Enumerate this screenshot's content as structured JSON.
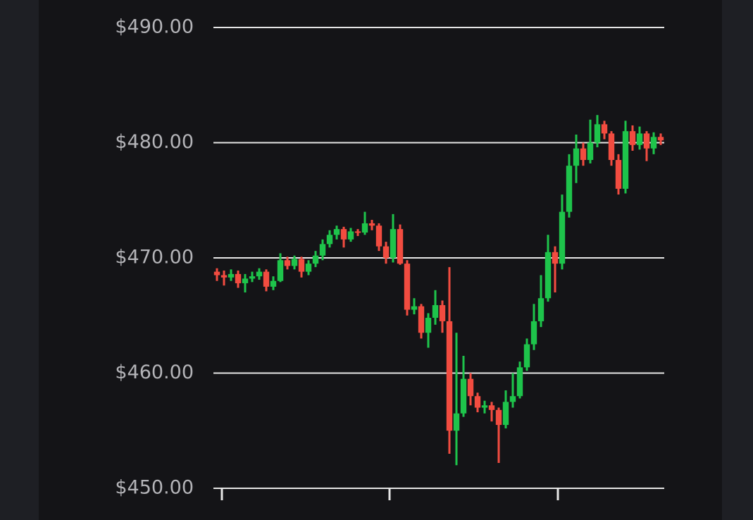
{
  "chart_data": {
    "type": "candlestick",
    "open": [
      468.8,
      468.5,
      468.3,
      468.6,
      467.8,
      468.2,
      468.4,
      468.8,
      467.5,
      468.0,
      469.8,
      469.3,
      469.9,
      468.8,
      469.5,
      470.2,
      471.2,
      472.0,
      472.5,
      471.6,
      472.3,
      472.2,
      473.0,
      472.8,
      471.0,
      470.0,
      472.5,
      469.5,
      465.5,
      465.8,
      463.5,
      464.8,
      465.9,
      464.5,
      455.0,
      456.5,
      459.5,
      458.0,
      457.0,
      457.2,
      456.8,
      455.5,
      457.5,
      458.0,
      460.5,
      462.5,
      464.5,
      466.5,
      470.5,
      469.5,
      474.0,
      478.0,
      479.5,
      478.5,
      480.0,
      481.6,
      480.8,
      478.5,
      476.0,
      481.0,
      479.8,
      480.8,
      479.5,
      480.5
    ],
    "high": [
      469.1,
      468.9,
      469.0,
      468.9,
      468.6,
      468.8,
      469.1,
      469.0,
      468.4,
      470.4,
      470.1,
      470.2,
      470.1,
      469.8,
      470.6,
      471.6,
      472.4,
      472.8,
      472.7,
      472.6,
      472.5,
      474.0,
      473.3,
      473.0,
      471.4,
      473.8,
      472.9,
      469.8,
      466.5,
      466.0,
      465.2,
      467.2,
      466.3,
      469.2,
      463.5,
      461.5,
      460.0,
      458.3,
      457.6,
      457.5,
      457.0,
      458.5,
      460.0,
      461.0,
      463.0,
      466.0,
      468.5,
      472.0,
      471.0,
      475.5,
      479.0,
      480.7,
      480.0,
      482.0,
      482.4,
      481.9,
      481.0,
      479.0,
      481.9,
      481.5,
      481.4,
      481.0,
      480.9,
      480.8
    ],
    "low": [
      468.0,
      467.6,
      468.0,
      467.4,
      467.0,
      467.9,
      468.1,
      467.1,
      467.2,
      467.9,
      469.0,
      469.0,
      468.3,
      468.5,
      469.2,
      469.8,
      470.9,
      471.6,
      470.9,
      471.4,
      471.9,
      472.0,
      472.4,
      470.6,
      469.5,
      469.6,
      469.4,
      465.0,
      465.1,
      463.0,
      462.2,
      464.2,
      463.5,
      453.0,
      452.0,
      456.2,
      457.2,
      456.6,
      456.5,
      455.8,
      452.2,
      455.2,
      457.0,
      457.8,
      460.2,
      462.0,
      464.0,
      466.2,
      467.0,
      469.0,
      473.5,
      476.5,
      478.0,
      478.2,
      479.6,
      480.3,
      478.0,
      475.5,
      475.6,
      479.3,
      479.4,
      478.4,
      479.0,
      479.8
    ],
    "close": [
      468.5,
      468.3,
      468.6,
      467.8,
      468.2,
      468.4,
      468.8,
      467.5,
      468.0,
      469.8,
      469.3,
      469.9,
      468.8,
      469.5,
      470.2,
      471.2,
      472.0,
      472.5,
      471.6,
      472.3,
      472.2,
      473.0,
      472.8,
      471.0,
      470.0,
      472.5,
      469.5,
      465.5,
      465.8,
      463.5,
      464.8,
      465.9,
      464.5,
      455.0,
      456.5,
      459.5,
      458.0,
      457.0,
      457.2,
      456.8,
      455.5,
      457.5,
      458.0,
      460.5,
      462.5,
      464.5,
      466.5,
      470.5,
      469.5,
      474.0,
      478.0,
      479.5,
      478.5,
      480.0,
      481.6,
      480.8,
      478.5,
      476.0,
      481.0,
      479.8,
      480.8,
      479.5,
      480.5,
      480.2
    ],
    "up_color": "#1ec44b",
    "down_color": "#f24c40",
    "ylim": [
      450,
      490
    ],
    "yticks": [
      {
        "value": 450,
        "label": "$450.00"
      },
      {
        "value": 460,
        "label": "$460.00"
      },
      {
        "value": 470,
        "label": "$470.00"
      },
      {
        "value": 480,
        "label": "$480.00"
      },
      {
        "value": 490,
        "label": "$490.00"
      }
    ],
    "grid": true
  }
}
